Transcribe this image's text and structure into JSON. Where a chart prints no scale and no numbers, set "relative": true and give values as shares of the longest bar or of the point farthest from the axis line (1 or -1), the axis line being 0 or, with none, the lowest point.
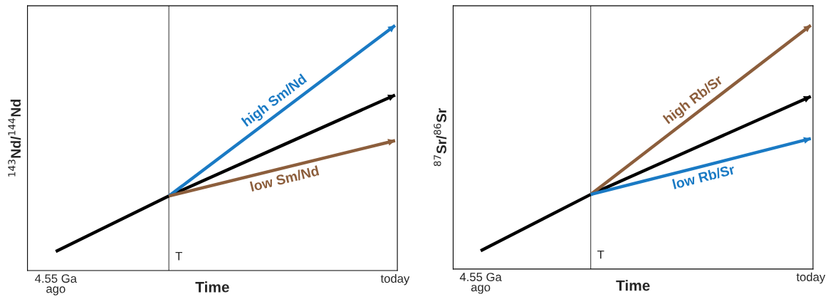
{
  "chart_data": [
    {
      "type": "line",
      "relative": true,
      "xlabel": "Time",
      "ylabel": "$^{143}$Nd/$^{144}$Nd",
      "categories": [
        "4.55 Ga\nago",
        null,
        null,
        "today"
      ],
      "tick_labels": "x",
      "legend": false,
      "annotations": [
        "T"
      ],
      "series": [
        {
          "color": "#000000",
          "values": [
            0.078,
            0.304,
            0.51,
            0.716
          ]
        },
        {
          "name": "high Sm/Nd",
          "color": "#1a7ac4",
          "values": [
            null,
            0.304,
            0.652,
            1.0
          ]
        },
        {
          "name": "low Sm/Nd",
          "color": "#8c5e3c",
          "values": [
            null,
            0.304,
            0.417,
            0.53
          ]
        }
      ]
    },
    {
      "type": "line",
      "relative": true,
      "xlabel": "Time",
      "ylabel": "$^{87}$Sr/$^{86}$Sr",
      "categories": [
        "4.55 Ga\nago",
        null,
        null,
        "today"
      ],
      "tick_labels": "x",
      "legend": false,
      "annotations": [
        "T"
      ],
      "series": [
        {
          "color": "#000000",
          "values": [
            0.075,
            0.306,
            0.507,
            0.708
          ]
        },
        {
          "name": "high Rb/Sr",
          "color": "#8c5e3c",
          "values": [
            null,
            0.306,
            0.653,
            1.0
          ]
        },
        {
          "name": "low Rb/Sr",
          "color": "#1a7ac4",
          "values": [
            null,
            0.306,
            0.42,
            0.535
          ]
        }
      ]
    }
  ]
}
